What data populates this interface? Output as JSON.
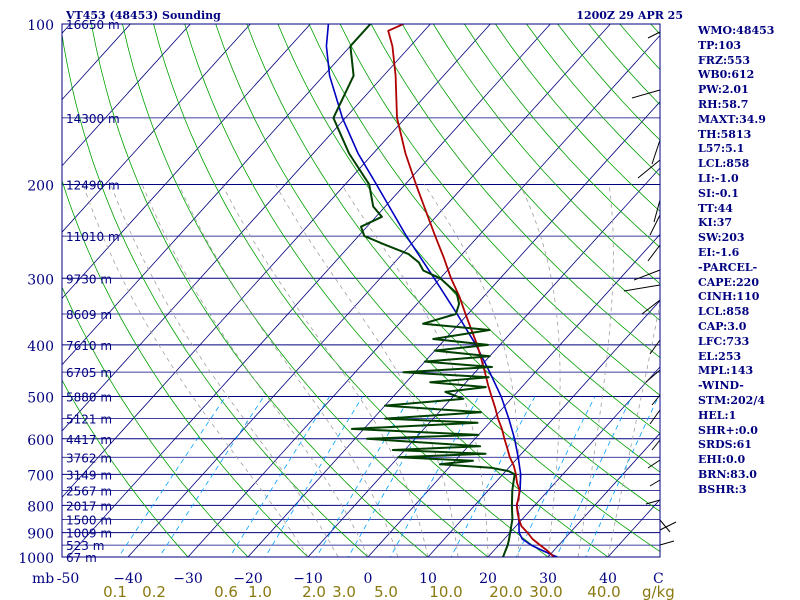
{
  "header": {
    "station_title": "VT453 (48453) Sounding",
    "time": "1200Z 29 APR 25"
  },
  "indices": [
    "WMO:48453",
    "TP:103",
    "FRZ:553",
    "WB0:612",
    "PW:2.01",
    "RH:58.7",
    "MAXT:34.9",
    "TH:5813",
    "L57:5.1",
    "LCL:858",
    "LI:-1.0",
    "SI:-0.1",
    "TT:44",
    "KI:37",
    "SW:203",
    "EI:-1.6",
    "-PARCEL-",
    "CAPE:220",
    "CINH:110",
    "LCL:858",
    "CAP:3.0",
    "LFC:733",
    "EL:253",
    "MPL:143",
    "-WIND-",
    "STM:202/4",
    "HEL:1",
    "SHR+:0.0",
    "SRDS:61",
    "EHI:0.0",
    "BRN:83.0",
    "BSHR:3"
  ],
  "colors": {
    "frame": "#000080",
    "isobar": "#000080",
    "isotherm": "#000080",
    "dry_adiabat": "#00a000",
    "moist_adiabat": "#a0a0a0",
    "mixing_ratio": "#00a0ff",
    "temperature": "#b00000",
    "dewpoint": "#004000",
    "parcel": "#0000c0",
    "wind": "#000000"
  },
  "chart_data": {
    "type": "skewt",
    "y_axis": {
      "unit": "mb",
      "scale": "log",
      "range": [
        1000,
        100
      ],
      "ticks": [
        100,
        200,
        300,
        400,
        500,
        600,
        700,
        800,
        900,
        1000
      ]
    },
    "x_axis": {
      "unit": "C",
      "ticks": [
        -50,
        -40,
        -30,
        -20,
        -10,
        0,
        10,
        20,
        30,
        40
      ],
      "labels": [
        "-50",
        "−40",
        "−30",
        "−20",
        "−10",
        "0",
        "10",
        "20",
        "30",
        "40"
      ]
    },
    "heights": [
      {
        "p": 100,
        "label": "16650 m"
      },
      {
        "p": 150,
        "label": "14300 m"
      },
      {
        "p": 200,
        "label": "12490 m"
      },
      {
        "p": 250,
        "label": "11010 m"
      },
      {
        "p": 300,
        "label": "9730 m"
      },
      {
        "p": 350,
        "label": "8609 m"
      },
      {
        "p": 400,
        "label": "7610 m"
      },
      {
        "p": 450,
        "label": "6705 m"
      },
      {
        "p": 500,
        "label": "5880 m"
      },
      {
        "p": 550,
        "label": "5121 m"
      },
      {
        "p": 600,
        "label": "4417 m"
      },
      {
        "p": 650,
        "label": "3762 m"
      },
      {
        "p": 700,
        "label": "3149 m"
      },
      {
        "p": 750,
        "label": "2567 m"
      },
      {
        "p": 800,
        "label": "2017 m"
      },
      {
        "p": 850,
        "label": "1500 m"
      },
      {
        "p": 900,
        "label": "1009 m"
      },
      {
        "p": 950,
        "label": "523 m"
      },
      {
        "p": 1000,
        "label": "67 m"
      }
    ],
    "mixing_ratio_labels": [
      "0.1",
      "0.2",
      "0.6",
      "1.0",
      "2.0",
      "3.0",
      "5.0",
      "10.0",
      "20.0",
      "30.0",
      "40.0"
    ],
    "mixing_ratio_unit": "g/kg",
    "temperature": [
      {
        "p": 1000,
        "t": 31
      },
      {
        "p": 975,
        "t": 29.1
      },
      {
        "p": 950,
        "t": 26.9
      },
      {
        "p": 925,
        "t": 24.7
      },
      {
        "p": 900,
        "t": 22.9
      },
      {
        "p": 875,
        "t": 20.9
      },
      {
        "p": 850,
        "t": 19.5
      },
      {
        "p": 825,
        "t": 18.2
      },
      {
        "p": 800,
        "t": 17.0
      },
      {
        "p": 775,
        "t": 16.2
      },
      {
        "p": 750,
        "t": 15.2
      },
      {
        "p": 725,
        "t": 13.6
      },
      {
        "p": 700,
        "t": 12.2
      },
      {
        "p": 675,
        "t": 10.6
      },
      {
        "p": 650,
        "t": 8.6
      },
      {
        "p": 625,
        "t": 6.8
      },
      {
        "p": 600,
        "t": 4.9
      },
      {
        "p": 575,
        "t": 3.0
      },
      {
        "p": 550,
        "t": 0.8
      },
      {
        "p": 525,
        "t": -1.3
      },
      {
        "p": 500,
        "t": -3.6
      },
      {
        "p": 475,
        "t": -6.0
      },
      {
        "p": 450,
        "t": -8.4
      },
      {
        "p": 425,
        "t": -11.0
      },
      {
        "p": 400,
        "t": -13.8
      },
      {
        "p": 375,
        "t": -17.0
      },
      {
        "p": 350,
        "t": -20.4
      },
      {
        "p": 325,
        "t": -24.0
      },
      {
        "p": 300,
        "t": -28.2
      },
      {
        "p": 275,
        "t": -32.4
      },
      {
        "p": 250,
        "t": -37.2
      },
      {
        "p": 225,
        "t": -42.4
      },
      {
        "p": 200,
        "t": -48.2
      },
      {
        "p": 175,
        "t": -54.6
      },
      {
        "p": 150,
        "t": -61.4
      },
      {
        "p": 125,
        "t": -68.0
      },
      {
        "p": 110,
        "t": -73.0
      },
      {
        "p": 103,
        "t": -76.0
      },
      {
        "p": 100,
        "t": -74.5
      }
    ],
    "dewpoint": [
      {
        "p": 1000,
        "t": 22.5
      },
      {
        "p": 975,
        "t": 22.0
      },
      {
        "p": 950,
        "t": 21.5
      },
      {
        "p": 925,
        "t": 20.8
      },
      {
        "p": 900,
        "t": 20.0
      },
      {
        "p": 850,
        "t": 18.4
      },
      {
        "p": 800,
        "t": 16.2
      },
      {
        "p": 750,
        "t": 14.0
      },
      {
        "p": 725,
        "t": 13.0
      },
      {
        "p": 700,
        "t": 12.0
      },
      {
        "p": 690,
        "t": 10.5
      },
      {
        "p": 680,
        "t": 7.0
      },
      {
        "p": 670,
        "t": -2.0
      },
      {
        "p": 660,
        "t": 3.0
      },
      {
        "p": 650,
        "t": -10.0
      },
      {
        "p": 640,
        "t": 4.0
      },
      {
        "p": 630,
        "t": -12.0
      },
      {
        "p": 620,
        "t": 2.0
      },
      {
        "p": 600,
        "t": -18.0
      },
      {
        "p": 590,
        "t": 0.0
      },
      {
        "p": 575,
        "t": -22.0
      },
      {
        "p": 560,
        "t": -2.0
      },
      {
        "p": 550,
        "t": -18.0
      },
      {
        "p": 535,
        "t": -3.0
      },
      {
        "p": 520,
        "t": -20.0
      },
      {
        "p": 505,
        "t": -8.0
      },
      {
        "p": 490,
        "t": -12.0
      },
      {
        "p": 480,
        "t": -6.0
      },
      {
        "p": 470,
        "t": -16.0
      },
      {
        "p": 460,
        "t": -7.0
      },
      {
        "p": 450,
        "t": -22.0
      },
      {
        "p": 440,
        "t": -8.0
      },
      {
        "p": 430,
        "t": -20.0
      },
      {
        "p": 420,
        "t": -10.0
      },
      {
        "p": 410,
        "t": -20.0
      },
      {
        "p": 400,
        "t": -12.0
      },
      {
        "p": 390,
        "t": -22.0
      },
      {
        "p": 375,
        "t": -14.0
      },
      {
        "p": 365,
        "t": -26.0
      },
      {
        "p": 350,
        "t": -22.0
      },
      {
        "p": 335,
        "t": -23.0
      },
      {
        "p": 320,
        "t": -25.0
      },
      {
        "p": 300,
        "t": -30.0
      },
      {
        "p": 290,
        "t": -34.0
      },
      {
        "p": 280,
        "t": -36.0
      },
      {
        "p": 270,
        "t": -39.0
      },
      {
        "p": 260,
        "t": -44.0
      },
      {
        "p": 250,
        "t": -49.0
      },
      {
        "p": 240,
        "t": -51.0
      },
      {
        "p": 230,
        "t": -49.0
      },
      {
        "p": 220,
        "t": -52.0
      },
      {
        "p": 200,
        "t": -56.0
      },
      {
        "p": 175,
        "t": -64.0
      },
      {
        "p": 150,
        "t": -72.0
      },
      {
        "p": 125,
        "t": -75.0
      },
      {
        "p": 110,
        "t": -80.0
      },
      {
        "p": 100,
        "t": -80.0
      }
    ],
    "parcel": [
      {
        "p": 1000,
        "t": 31.5
      },
      {
        "p": 975,
        "t": 28.4
      },
      {
        "p": 950,
        "t": 25.4
      },
      {
        "p": 925,
        "t": 23.0
      },
      {
        "p": 900,
        "t": 21.5
      },
      {
        "p": 875,
        "t": 20.5
      },
      {
        "p": 858,
        "t": 19.8
      },
      {
        "p": 825,
        "t": 18.3
      },
      {
        "p": 800,
        "t": 17.0
      },
      {
        "p": 750,
        "t": 15.3
      },
      {
        "p": 700,
        "t": 13.0
      },
      {
        "p": 650,
        "t": 10.0
      },
      {
        "p": 600,
        "t": 6.6
      },
      {
        "p": 550,
        "t": 2.6
      },
      {
        "p": 500,
        "t": -2.0
      },
      {
        "p": 450,
        "t": -7.6
      },
      {
        "p": 400,
        "t": -14.0
      },
      {
        "p": 350,
        "t": -21.8
      },
      {
        "p": 300,
        "t": -31.0
      },
      {
        "p": 250,
        "t": -42.0
      },
      {
        "p": 200,
        "t": -54.8
      },
      {
        "p": 175,
        "t": -62.5
      },
      {
        "p": 150,
        "t": -70.5
      },
      {
        "p": 125,
        "t": -79.0
      },
      {
        "p": 110,
        "t": -84.0
      },
      {
        "p": 100,
        "t": -87.0
      }
    ]
  }
}
